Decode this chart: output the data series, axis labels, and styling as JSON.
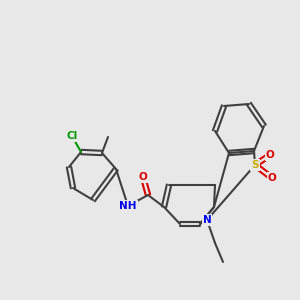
{
  "bg_color": "#e8e8e8",
  "bond_color": "#404040",
  "figsize": [
    3.0,
    3.0
  ],
  "dpi": 100,
  "atom_colors": {
    "N": "#0000EE",
    "O": "#DD0000",
    "S": "#CCAA00",
    "Cl": "#009900",
    "NH": "#0000EE"
  },
  "lw": 1.5,
  "font_size": 7.5
}
